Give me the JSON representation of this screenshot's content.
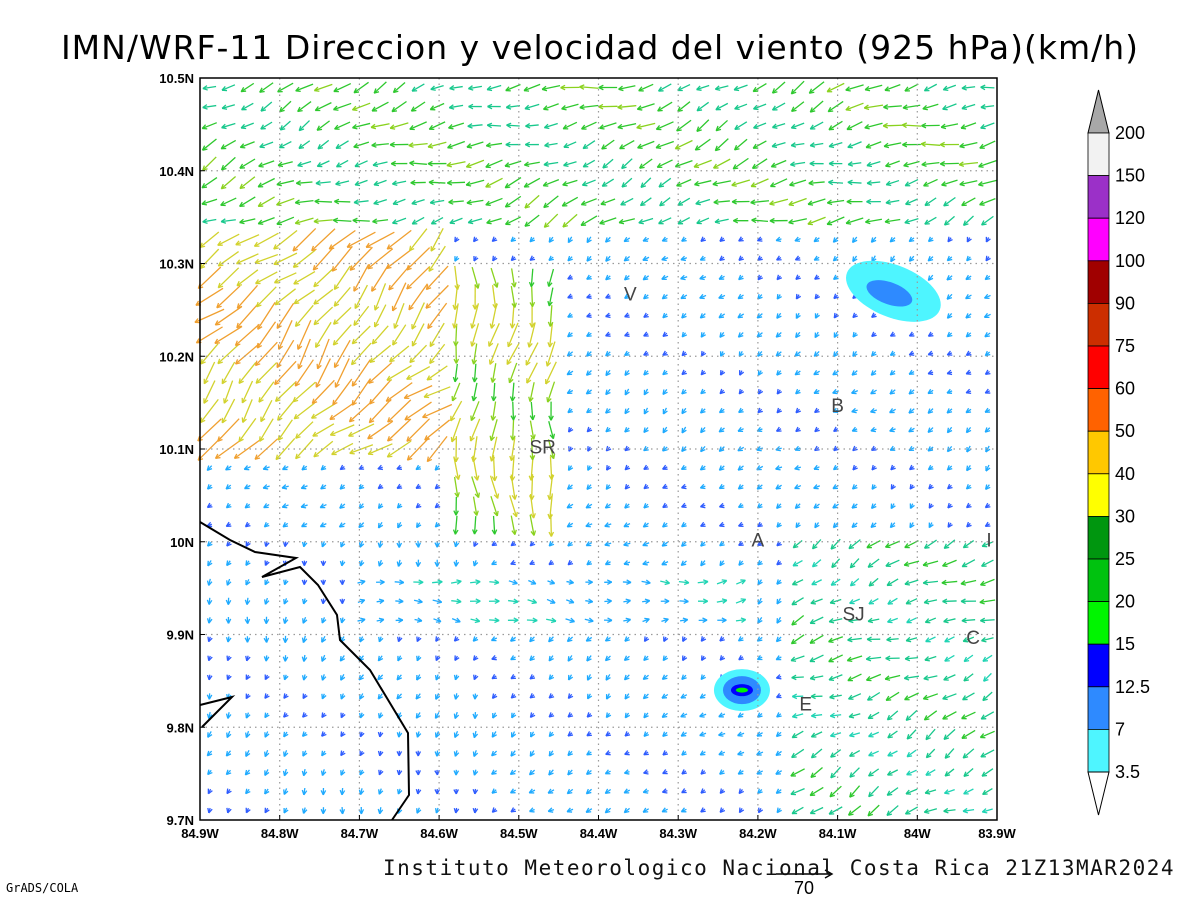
{
  "title": "IMN/WRF-11 Direccion y velocidad del viento (925 hPa)(km/h)",
  "footer": "Instituto Meteorologico Nacional Costa Rica 21Z13MAR2024",
  "software": "GrADS/COLA",
  "reference_vector": {
    "label": "70",
    "speed": 70
  },
  "axes": {
    "lon_ticks": [
      "84.9W",
      "84.8W",
      "84.7W",
      "84.6W",
      "84.5W",
      "84.4W",
      "84.3W",
      "84.2W",
      "84.1W",
      "84W",
      "83.9W"
    ],
    "lat_ticks": [
      "10.5N",
      "10.4N",
      "10.3N",
      "10.2N",
      "10.1N",
      "10N",
      "9.9N",
      "9.8N",
      "9.7N"
    ],
    "lon_range": [
      -84.9,
      -83.9
    ],
    "lat_range": [
      9.7,
      10.5
    ],
    "grid": true
  },
  "colorbar": {
    "labels": [
      "200",
      "150",
      "120",
      "100",
      "90",
      "75",
      "60",
      "50",
      "40",
      "30",
      "25",
      "20",
      "15",
      "12.5",
      "7",
      "3.5"
    ],
    "colors": [
      "#f2f2f2",
      "#9b30c8",
      "#ff00ff",
      "#a00000",
      "#cc2e00",
      "#ff0000",
      "#ff6200",
      "#ffc800",
      "#ffff00",
      "#00960f",
      "#00c20f",
      "#00f500",
      "#0000ff",
      "#2e8aff",
      "#4ef5ff"
    ],
    "top_arrow_color": "#a8a8a8",
    "bottom_arrow_color": "#ffffff"
  },
  "cities": [
    {
      "label": "V",
      "lon": -84.36,
      "lat": 10.26
    },
    {
      "label": "SR",
      "lon": -84.47,
      "lat": 10.095
    },
    {
      "label": "B",
      "lon": -84.1,
      "lat": 10.14
    },
    {
      "label": "A",
      "lon": -84.2,
      "lat": 9.995
    },
    {
      "label": "I",
      "lon": -83.91,
      "lat": 9.995
    },
    {
      "label": "SJ",
      "lon": -84.08,
      "lat": 9.915
    },
    {
      "label": "C",
      "lon": -83.93,
      "lat": 9.89
    },
    {
      "label": "E",
      "lon": -84.14,
      "lat": 9.818
    }
  ],
  "wind_field_regions": [
    {
      "name": "northern-band",
      "lat": [
        10.34,
        10.5
      ],
      "dir_deg": 250,
      "speed_kmh": 22
    },
    {
      "name": "northwest-jet",
      "lat": [
        10.1,
        10.34
      ],
      "lon": [
        -84.9,
        -84.6
      ],
      "dir_deg": 225,
      "speed_kmh": 40
    },
    {
      "name": "central-outflow",
      "lon": [
        -84.6,
        -84.45
      ],
      "lat": [
        10.0,
        10.3
      ],
      "dir_deg": 185,
      "speed_kmh": 30
    },
    {
      "name": "southwest-lowland",
      "lat": [
        9.7,
        10.0
      ],
      "lon": [
        -84.9,
        -84.55
      ],
      "dir_deg": 200,
      "speed_kmh": 8
    },
    {
      "name": "central-easterly",
      "lat": [
        9.9,
        9.97
      ],
      "lon": [
        -84.7,
        -84.2
      ],
      "dir_deg": 90,
      "speed_kmh": 12
    },
    {
      "name": "southeast-inflow",
      "lat": [
        9.7,
        10.0
      ],
      "lon": [
        -84.15,
        -83.9
      ],
      "dir_deg": 245,
      "speed_kmh": 18
    }
  ],
  "speed_contours": [
    {
      "name": "contour-northeast",
      "lon": -84.03,
      "lat": 10.27,
      "levels": [
        "3.5",
        "7"
      ]
    },
    {
      "name": "contour-south",
      "lon": -84.22,
      "lat": 9.84,
      "levels": [
        "3.5",
        "7",
        "12.5",
        "15"
      ]
    }
  ]
}
